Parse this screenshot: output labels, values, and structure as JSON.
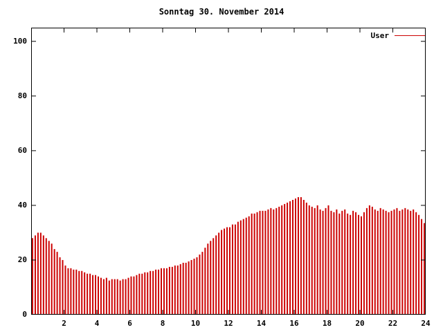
{
  "chart_data": {
    "type": "bar",
    "title": "Sonntag 30. November 2014",
    "xlabel": "",
    "ylabel": "",
    "xlim": [
      0,
      24
    ],
    "ylim": [
      0,
      105
    ],
    "x_ticks": [
      2,
      4,
      6,
      8,
      10,
      12,
      14,
      16,
      18,
      20,
      22,
      24
    ],
    "y_ticks": [
      0,
      20,
      40,
      60,
      80,
      100
    ],
    "grid": false,
    "legend_position": "top-right",
    "bar_color": "#cc0000",
    "border_color": "#000000",
    "sample_interval_hours": 0.1667,
    "series": [
      {
        "name": "User",
        "color": "#cc0000",
        "values": [
          28,
          29,
          30,
          30,
          29,
          28,
          27,
          26,
          24,
          23,
          21,
          20,
          18,
          17,
          17,
          16.5,
          16.5,
          16,
          16,
          15.5,
          15,
          15,
          14.5,
          14.5,
          14,
          13.5,
          13,
          13.5,
          12.5,
          13,
          13,
          13,
          12.5,
          13,
          13,
          13.5,
          14,
          14,
          14.5,
          15,
          15,
          15.5,
          15.5,
          16,
          16,
          16.5,
          16.5,
          17,
          17,
          17,
          17.5,
          17.5,
          18,
          18,
          18.5,
          19,
          19,
          19.5,
          20,
          20.5,
          21,
          22,
          23,
          24.5,
          26,
          27,
          28,
          29,
          30,
          31,
          31.5,
          32,
          32,
          33,
          33,
          34,
          34.5,
          35,
          35.5,
          36,
          37,
          37,
          37.5,
          38,
          38,
          38,
          38.5,
          39,
          38.5,
          39,
          39.5,
          40,
          40.5,
          41,
          41.5,
          42,
          42.5,
          43,
          43,
          42,
          41,
          40,
          39.5,
          39,
          40,
          38.5,
          38,
          39,
          40,
          38,
          37.5,
          38.5,
          37,
          38,
          38.5,
          37,
          36.5,
          38,
          37.5,
          36.5,
          36,
          37.5,
          39,
          40,
          39.5,
          38.5,
          38,
          39,
          38.5,
          38,
          37.5,
          38,
          38.5,
          39,
          38,
          38.5,
          39,
          38.5,
          38,
          38.5,
          37.5,
          36.5,
          35,
          33.5
        ]
      }
    ]
  },
  "legend": {
    "user_label": "User"
  }
}
